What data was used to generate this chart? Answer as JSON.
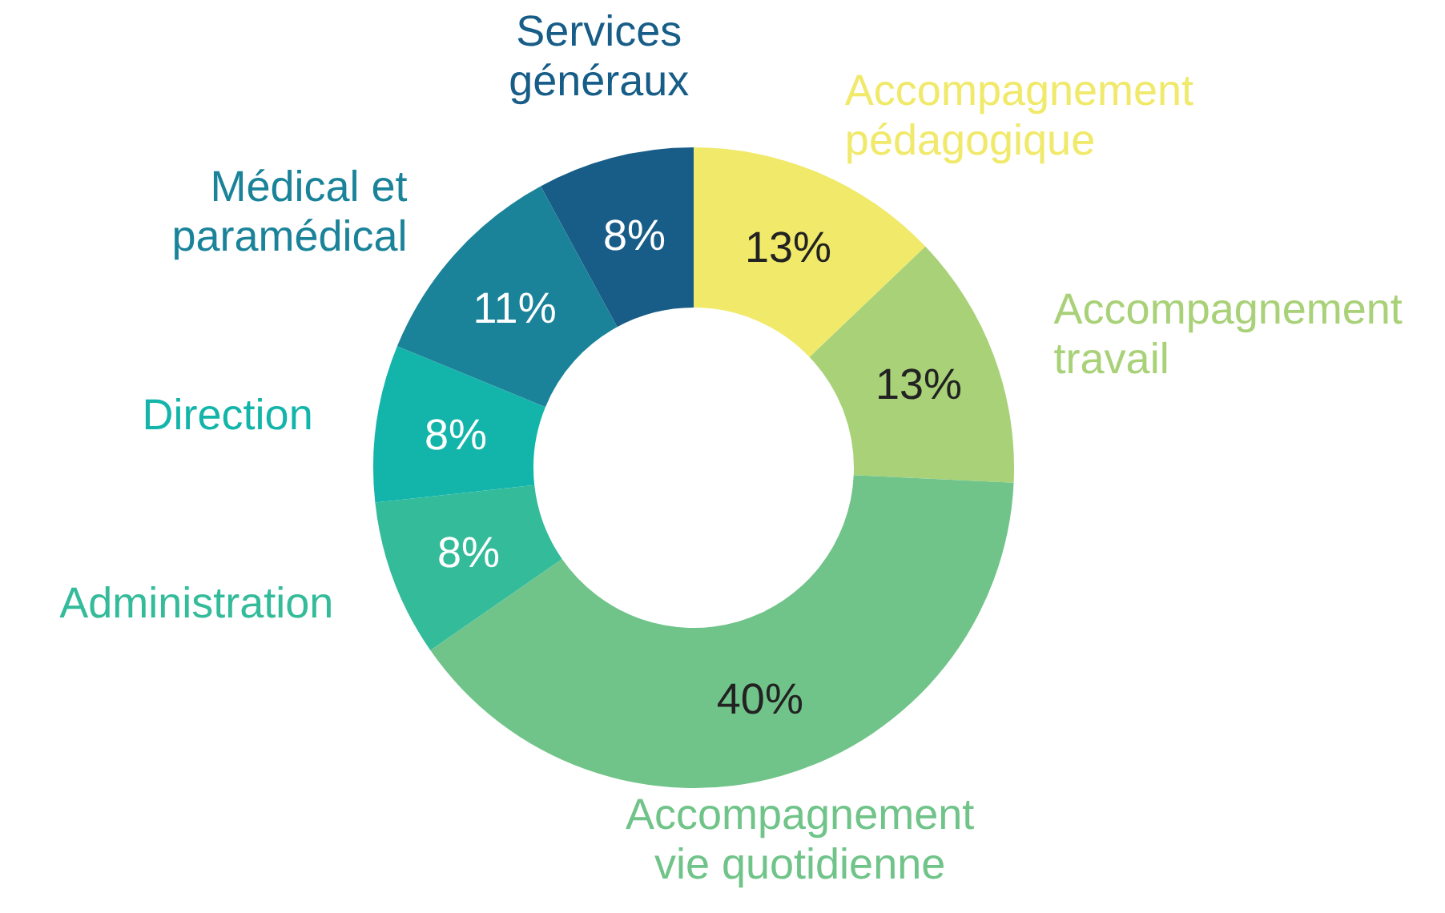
{
  "chart_data": {
    "type": "donut",
    "categories": [
      "Accompagnement pédagogique",
      "Accompagnement travail",
      "Accompagnement vie quotidienne",
      "Administration",
      "Direction",
      "Médical et paramédical",
      "Services généraux"
    ],
    "values": [
      13,
      13,
      40,
      8,
      8,
      11,
      8
    ],
    "colors": [
      "#f0e96a",
      "#a8d178",
      "#70c489",
      "#33bb9a",
      "#13b5aa",
      "#1a8399",
      "#175d87"
    ],
    "value_labels": [
      "13%",
      "13%",
      "40%",
      "8%",
      "8%",
      "11%",
      "8%"
    ]
  }
}
